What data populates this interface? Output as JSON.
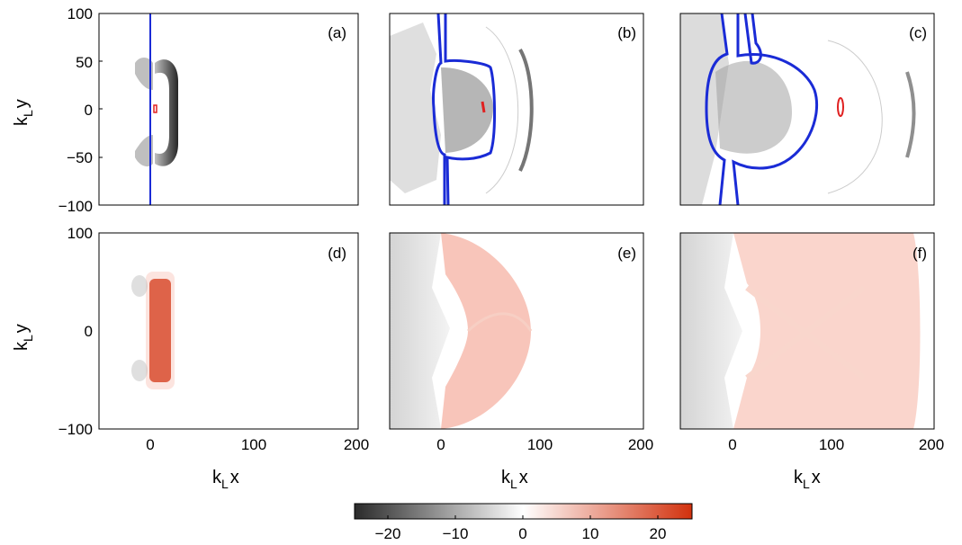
{
  "panels": [
    {
      "id": "a",
      "label": "(a)"
    },
    {
      "id": "b",
      "label": "(b)"
    },
    {
      "id": "c",
      "label": "(c)"
    },
    {
      "id": "d",
      "label": "(d)"
    },
    {
      "id": "e",
      "label": "(e)"
    },
    {
      "id": "f",
      "label": "(f)"
    }
  ],
  "axes": {
    "xlabel_main": "k",
    "xlabel_sub": "L",
    "xlabel_end": "x",
    "ylabel_main": "k",
    "ylabel_sub": "L",
    "ylabel_end": "y",
    "x_ticks": [
      0,
      100,
      200
    ],
    "y_ticks": [
      100,
      50,
      0,
      -50,
      -100
    ],
    "y_ticks_bottom_row": [
      100,
      0,
      -100
    ],
    "x_range": [
      -50,
      200
    ],
    "y_range": [
      -100,
      100
    ]
  },
  "colorbar": {
    "range": [
      -25,
      25
    ],
    "ticks": [
      -20,
      -10,
      0,
      10,
      20
    ],
    "colors": {
      "negative": "#2a2a2a",
      "zero": "#ffffff",
      "positive": "#d2310d"
    }
  },
  "colors": {
    "contour": "#1a2bd6",
    "marker": "#e02020",
    "pink": "#f5b2a3",
    "red": "#d2391a"
  }
}
